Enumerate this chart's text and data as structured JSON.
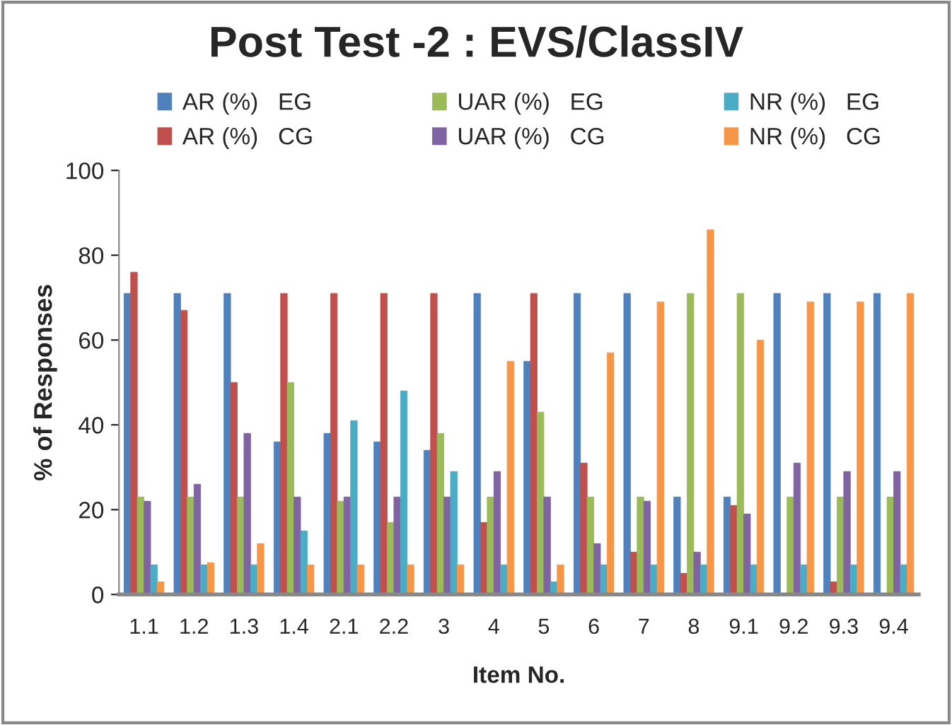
{
  "chart_data": {
    "type": "bar",
    "title": "Post Test -2 : EVS/ClassIV",
    "xlabel": "Item No.",
    "ylabel": "% of Responses",
    "categories": [
      "1.1",
      "1.2",
      "1.3",
      "1.4",
      "2.1",
      "2.2",
      "3",
      "4",
      "5",
      "6",
      "7",
      "8",
      "9.1",
      "9.2",
      "9.3",
      "9.4"
    ],
    "series": [
      {
        "name": "AR (%)   EG",
        "color": "#4f81bd",
        "values": [
          71,
          71,
          71,
          36,
          38,
          36,
          34,
          71,
          55,
          71,
          71,
          23,
          23,
          71,
          71,
          71
        ]
      },
      {
        "name": "AR (%)   CG",
        "color": "#c0504d",
        "values": [
          76,
          67,
          50,
          71,
          71,
          71,
          71,
          17,
          71,
          31,
          10,
          5,
          21,
          0,
          3,
          0
        ]
      },
      {
        "name": "UAR (%)   EG",
        "color": "#9bbb59",
        "values": [
          23,
          23,
          23,
          50,
          22,
          17,
          38,
          23,
          43,
          23,
          23,
          71,
          71,
          23,
          23,
          23
        ]
      },
      {
        "name": "UAR (%)   CG",
        "color": "#8064a2",
        "values": [
          22,
          26,
          38,
          23,
          23,
          23,
          23,
          29,
          23,
          12,
          22,
          10,
          19,
          31,
          29,
          29
        ]
      },
      {
        "name": "NR (%)   EG",
        "color": "#4bacc6",
        "values": [
          7,
          7,
          7,
          15,
          41,
          48,
          29,
          7,
          3,
          7,
          7,
          7,
          7,
          7,
          7,
          7
        ]
      },
      {
        "name": "NR (%)   CG",
        "color": "#f79646",
        "values": [
          3,
          7.5,
          12,
          7,
          7,
          7,
          7,
          55,
          7,
          57,
          69,
          86,
          60,
          69,
          69,
          71
        ]
      }
    ],
    "ylim": [
      0,
      100
    ],
    "yticks": [
      0,
      20,
      40,
      60,
      80,
      100
    ],
    "grid": false,
    "legend": "top"
  }
}
